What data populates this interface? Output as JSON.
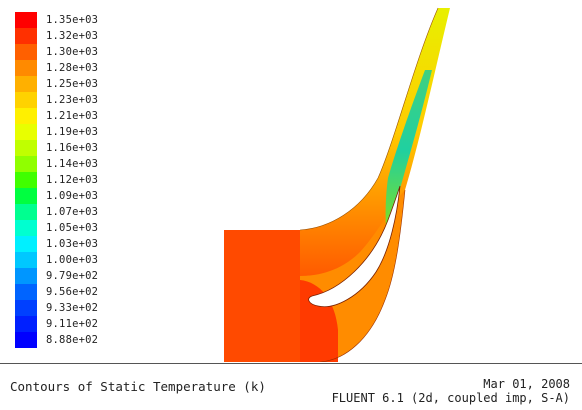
{
  "colormap": {
    "labels": [
      "1.35e+03",
      "1.32e+03",
      "1.30e+03",
      "1.28e+03",
      "1.25e+03",
      "1.23e+03",
      "1.21e+03",
      "1.19e+03",
      "1.16e+03",
      "1.14e+03",
      "1.12e+03",
      "1.09e+03",
      "1.07e+03",
      "1.05e+03",
      "1.03e+03",
      "1.00e+03",
      "9.79e+02",
      "9.56e+02",
      "9.33e+02",
      "9.11e+02",
      "8.88e+02"
    ],
    "colors": [
      "#ff0000",
      "#ff3000",
      "#ff6000",
      "#ff8a00",
      "#ffb000",
      "#ffd200",
      "#fff000",
      "#e8ff00",
      "#c0ff00",
      "#90ff00",
      "#40ff00",
      "#00ff40",
      "#00ff90",
      "#00ffd0",
      "#00f0ff",
      "#00c8ff",
      "#0096ff",
      "#0064ff",
      "#0040ff",
      "#0020ff",
      "#0000ff"
    ]
  },
  "footer": {
    "title": "Contours of Static Temperature (k)",
    "date": "Mar 01, 2008",
    "solver": "FLUENT 6.1 (2d, coupled imp, S-A)"
  }
}
